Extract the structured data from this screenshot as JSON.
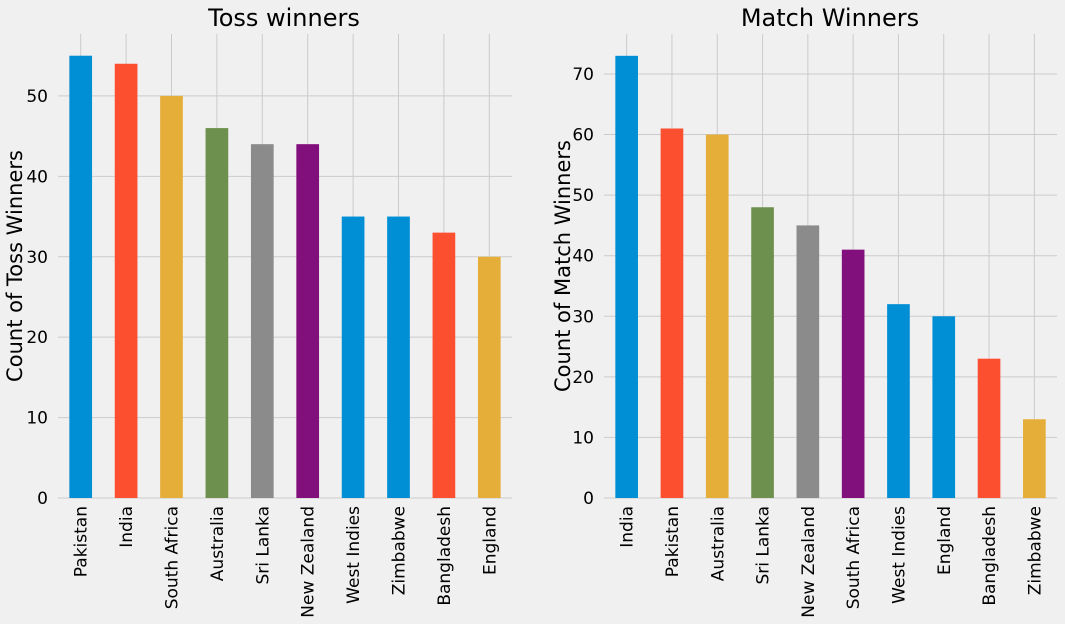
{
  "palette": [
    "#008fd5",
    "#fc4f30",
    "#e5ae38",
    "#6d904f",
    "#8b8b8b",
    "#810f7c",
    "#008fd5",
    "#008fd5",
    "#fc4f30",
    "#e5ae38"
  ],
  "background": "#f0f0f0",
  "grid_color": "#cbcbcb",
  "chart_data": [
    {
      "type": "bar",
      "title": "Toss winners",
      "xlabel": "",
      "ylabel": "Count of Toss Winners",
      "categories": [
        "Pakistan",
        "India",
        "South Africa",
        "Australia",
        "Sri Lanka",
        "New Zealand",
        "West Indies",
        "Zimbabwe",
        "Bangladesh",
        "England"
      ],
      "values": [
        55,
        54,
        50,
        46,
        44,
        44,
        35,
        35,
        33,
        30
      ],
      "ylim": [
        0,
        57.7
      ],
      "yticks": [
        0,
        10,
        20,
        30,
        40,
        50
      ],
      "grid": true,
      "colors": [
        "#008fd5",
        "#fc4f30",
        "#e5ae38",
        "#6d904f",
        "#8b8b8b",
        "#810f7c",
        "#008fd5",
        "#008fd5",
        "#fc4f30",
        "#e5ae38"
      ]
    },
    {
      "type": "bar",
      "title": "Match Winners",
      "xlabel": "",
      "ylabel": "Count of Match Winners",
      "categories": [
        "India",
        "Pakistan",
        "Australia",
        "Sri Lanka",
        "New Zealand",
        "South Africa",
        "West Indies",
        "England",
        "Bangladesh",
        "Zimbabwe"
      ],
      "values": [
        73,
        61,
        60,
        48,
        45,
        41,
        32,
        30,
        23,
        13
      ],
      "ylim": [
        0,
        76.6
      ],
      "yticks": [
        0,
        10,
        20,
        30,
        40,
        50,
        60,
        70
      ],
      "grid": true,
      "colors": [
        "#008fd5",
        "#fc4f30",
        "#e5ae38",
        "#6d904f",
        "#8b8b8b",
        "#810f7c",
        "#008fd5",
        "#008fd5",
        "#fc4f30",
        "#e5ae38"
      ]
    }
  ]
}
